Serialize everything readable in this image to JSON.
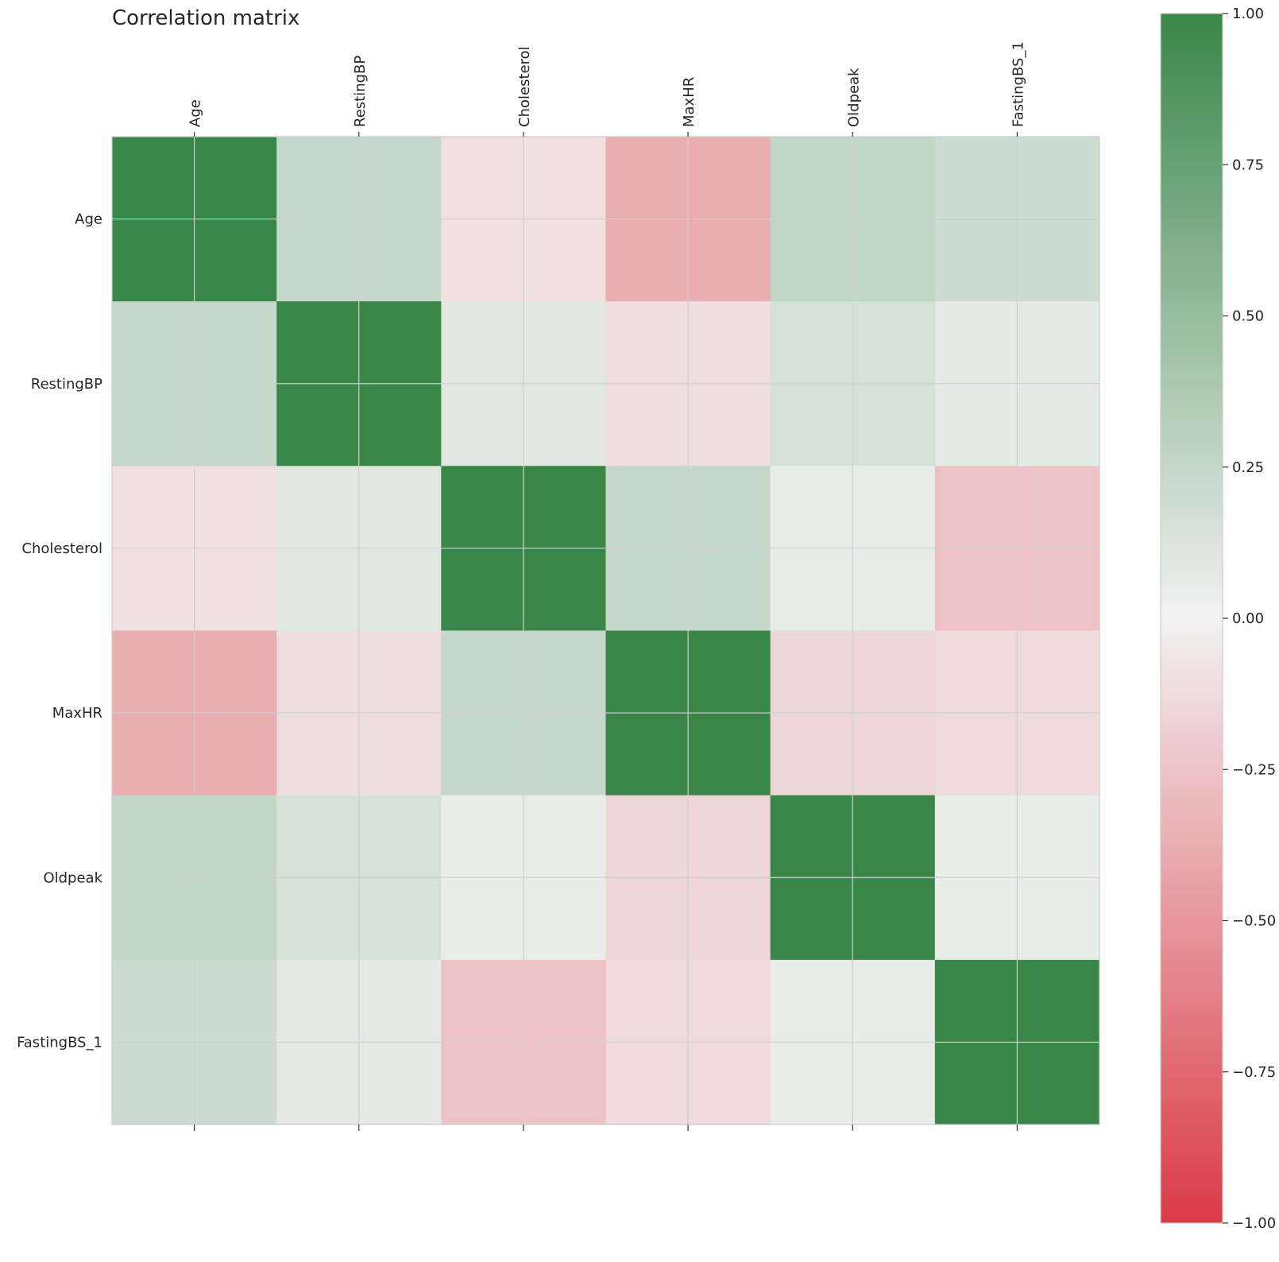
{
  "chart_data": {
    "type": "heatmap",
    "title": "Correlation matrix",
    "labels": [
      "Age",
      "RestingBP",
      "Cholesterol",
      "MaxHR",
      "Oldpeak",
      "FastingBS_1"
    ],
    "matrix": [
      [
        1.0,
        0.25,
        -0.1,
        -0.38,
        0.26,
        0.2
      ],
      [
        0.25,
        1.0,
        0.1,
        -0.11,
        0.16,
        0.07
      ],
      [
        -0.1,
        0.1,
        1.0,
        0.24,
        0.05,
        -0.26
      ],
      [
        -0.38,
        -0.11,
        0.24,
        1.0,
        -0.16,
        -0.13
      ],
      [
        0.26,
        0.16,
        0.05,
        -0.16,
        1.0,
        0.05
      ],
      [
        0.2,
        0.07,
        -0.26,
        -0.13,
        0.05,
        1.0
      ]
    ],
    "colorbar": {
      "min": -1.0,
      "max": 1.0,
      "ticks": [
        "1.00",
        "0.75",
        "0.50",
        "0.25",
        "0.00",
        "−0.25",
        "−0.50",
        "−0.75",
        "−1.00"
      ],
      "tick_values": [
        1.0,
        0.75,
        0.5,
        0.25,
        0.0,
        -0.25,
        -0.5,
        -0.75,
        -1.0
      ],
      "colors": {
        "negative": "#da3b46",
        "neutral": "#f2f2f2",
        "positive": "#3a8649"
      }
    },
    "grid": true
  }
}
